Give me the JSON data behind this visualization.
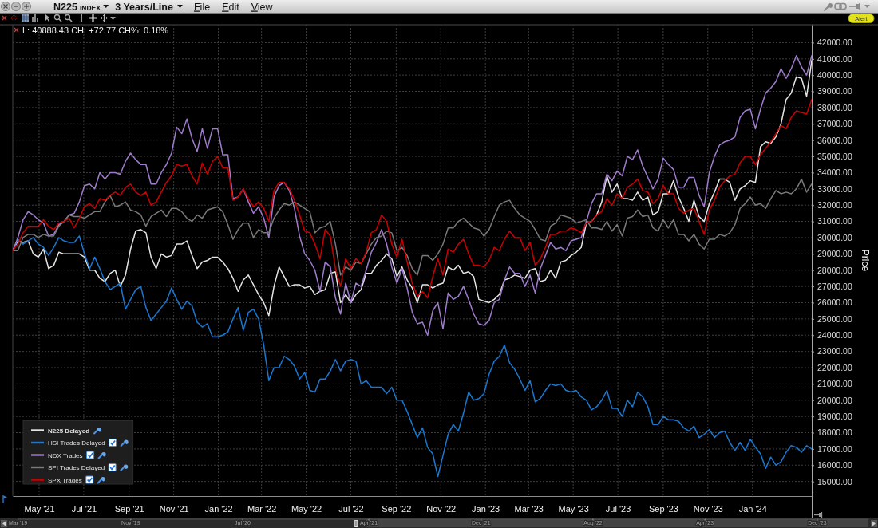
{
  "chart_data": {
    "type": "line",
    "title": "N225 INDEX",
    "subtitle": "3 Years/Line",
    "ylabel": "Price",
    "annotations": [
      "File",
      "Edit",
      "View",
      "Alert",
      "L: 40888.43 CH: +72.77 CH%: 0.18%"
    ],
    "x": [
      "2021-03-26",
      "2021-04-02",
      "2021-04-09",
      "2021-04-16",
      "2021-04-23",
      "2021-04-30",
      "2021-05-07",
      "2021-05-14",
      "2021-05-21",
      "2021-05-28",
      "2021-06-04",
      "2021-06-11",
      "2021-06-18",
      "2021-06-25",
      "2021-07-02",
      "2021-07-09",
      "2021-07-16",
      "2021-07-23",
      "2021-07-30",
      "2021-08-06",
      "2021-08-13",
      "2021-08-20",
      "2021-08-27",
      "2021-09-03",
      "2021-09-10",
      "2021-09-17",
      "2021-09-24",
      "2021-10-01",
      "2021-10-08",
      "2021-10-15",
      "2021-10-22",
      "2021-10-29",
      "2021-11-05",
      "2021-11-12",
      "2021-11-19",
      "2021-11-26",
      "2021-12-03",
      "2021-12-10",
      "2021-12-17",
      "2021-12-24",
      "2021-12-31",
      "2022-01-07",
      "2022-01-14",
      "2022-01-21",
      "2022-01-28",
      "2022-02-04",
      "2022-02-11",
      "2022-02-18",
      "2022-02-25",
      "2022-03-04",
      "2022-03-11",
      "2022-03-18",
      "2022-03-25",
      "2022-04-01",
      "2022-04-08",
      "2022-04-15",
      "2022-04-22",
      "2022-04-29",
      "2022-05-06",
      "2022-05-13",
      "2022-05-20",
      "2022-05-27",
      "2022-06-03",
      "2022-06-10",
      "2022-06-17",
      "2022-06-24",
      "2022-07-01",
      "2022-07-08",
      "2022-07-15",
      "2022-07-22",
      "2022-07-29",
      "2022-08-05",
      "2022-08-12",
      "2022-08-19",
      "2022-08-26",
      "2022-09-02",
      "2022-09-09",
      "2022-09-16",
      "2022-09-23",
      "2022-09-30",
      "2022-10-07",
      "2022-10-14",
      "2022-10-21",
      "2022-10-28",
      "2022-11-04",
      "2022-11-11",
      "2022-11-18",
      "2022-11-25",
      "2022-12-02",
      "2022-12-09",
      "2022-12-16",
      "2022-12-23",
      "2022-12-30",
      "2023-01-06",
      "2023-01-13",
      "2023-01-20",
      "2023-01-27",
      "2023-02-03",
      "2023-02-10",
      "2023-02-17",
      "2023-02-24",
      "2023-03-03",
      "2023-03-10",
      "2023-03-17",
      "2023-03-24",
      "2023-03-31",
      "2023-04-07",
      "2023-04-14",
      "2023-04-21",
      "2023-04-28",
      "2023-05-05",
      "2023-05-12",
      "2023-05-19",
      "2023-05-26",
      "2023-06-02",
      "2023-06-09",
      "2023-06-16",
      "2023-06-23",
      "2023-06-30",
      "2023-07-07",
      "2023-07-14",
      "2023-07-21",
      "2023-07-28",
      "2023-08-04",
      "2023-08-11",
      "2023-08-18",
      "2023-08-25",
      "2023-09-01",
      "2023-09-08",
      "2023-09-15",
      "2023-09-22",
      "2023-09-29",
      "2023-10-06",
      "2023-10-13",
      "2023-10-20",
      "2023-10-27",
      "2023-11-03",
      "2023-11-10",
      "2023-11-17",
      "2023-11-24",
      "2023-12-01",
      "2023-12-08",
      "2023-12-15",
      "2023-12-22",
      "2023-12-29",
      "2024-01-05",
      "2024-01-12",
      "2024-01-19",
      "2024-01-26",
      "2024-02-02",
      "2024-02-09",
      "2024-02-16",
      "2024-02-23",
      "2024-03-01",
      "2024-03-08",
      "2024-03-15",
      "2024-03-22"
    ],
    "xlim": [
      "2021-03-26",
      "2024-03-22"
    ],
    "xticks": [
      {
        "value": "2021-05-01",
        "label": "May '21"
      },
      {
        "value": "2021-07-01",
        "label": "Jul '21"
      },
      {
        "value": "2021-09-01",
        "label": "Sep '21"
      },
      {
        "value": "2021-11-01",
        "label": "Nov '21"
      },
      {
        "value": "2022-01-01",
        "label": "Jan '22"
      },
      {
        "value": "2022-03-01",
        "label": "Mar '22"
      },
      {
        "value": "2022-05-01",
        "label": "May '22"
      },
      {
        "value": "2022-07-01",
        "label": "Jul '22"
      },
      {
        "value": "2022-09-01",
        "label": "Sep '22"
      },
      {
        "value": "2022-11-01",
        "label": "Nov '22"
      },
      {
        "value": "2023-01-01",
        "label": "Jan '23"
      },
      {
        "value": "2023-03-01",
        "label": "Mar '23"
      },
      {
        "value": "2023-05-01",
        "label": "May '23"
      },
      {
        "value": "2023-07-01",
        "label": "Jul '23"
      },
      {
        "value": "2023-09-01",
        "label": "Sep '23"
      },
      {
        "value": "2023-11-01",
        "label": "Nov '23"
      },
      {
        "value": "2024-01-01",
        "label": "Jan '24"
      }
    ],
    "x2lim": [
      "2019-03-01",
      "2024-03-22"
    ],
    "x2ticks": [
      {
        "value": "2019-03-01",
        "label": "Mar '19"
      },
      {
        "value": "2019-11-01",
        "label": "Nov '19"
      },
      {
        "value": "2020-07-01",
        "label": "Jul '20"
      },
      {
        "value": "2021-04-01",
        "label": "Apr '21"
      },
      {
        "value": "2021-12-01",
        "label": "Dec '21"
      },
      {
        "value": "2022-08-01",
        "label": "Aug '22"
      },
      {
        "value": "2023-04-01",
        "label": "Apr '23"
      },
      {
        "value": "2023-12-01",
        "label": "Dec '23"
      }
    ],
    "ylim": [
      14100,
      43100
    ],
    "yticks": [
      {
        "value": 15000,
        "label": "15000.00"
      },
      {
        "value": 16000,
        "label": "16000.00"
      },
      {
        "value": 17000,
        "label": "17000.00"
      },
      {
        "value": 18000,
        "label": "18000.00"
      },
      {
        "value": 19000,
        "label": "19000.00"
      },
      {
        "value": 20000,
        "label": "20000.00"
      },
      {
        "value": 21000,
        "label": "21000.00"
      },
      {
        "value": 22000,
        "label": "22000.00"
      },
      {
        "value": 23000,
        "label": "23000.00"
      },
      {
        "value": 24000,
        "label": "24000.00"
      },
      {
        "value": 25000,
        "label": "25000.00"
      },
      {
        "value": 26000,
        "label": "26000.00"
      },
      {
        "value": 27000,
        "label": "27000.00"
      },
      {
        "value": 28000,
        "label": "28000.00"
      },
      {
        "value": 29000,
        "label": "29000.00"
      },
      {
        "value": 30000,
        "label": "30000.00"
      },
      {
        "value": 31000,
        "label": "31000.00"
      },
      {
        "value": 32000,
        "label": "32000.00"
      },
      {
        "value": 33000,
        "label": "33000.00"
      },
      {
        "value": 34000,
        "label": "34000.00"
      },
      {
        "value": 35000,
        "label": "35000.00"
      },
      {
        "value": 36000,
        "label": "36000.00"
      },
      {
        "value": 37000,
        "label": "37000.00"
      },
      {
        "value": 38000,
        "label": "38000.00"
      },
      {
        "value": 39000,
        "label": "39000.00"
      },
      {
        "value": 40000,
        "label": "40000.00"
      },
      {
        "value": 41000,
        "label": "41000.00"
      },
      {
        "value": 42000,
        "label": "42000.00"
      }
    ],
    "grid": true,
    "legend": "bottom left",
    "series": [
      {
        "name": "N225 Delayed",
        "color": "#e4e4e4",
        "values": [
          29200,
          29800,
          29700,
          29800,
          29000,
          28800,
          29300,
          28100,
          28300,
          29100,
          29000,
          29000,
          29000,
          29000,
          28800,
          28000,
          28000,
          27500,
          27300,
          27800,
          28000,
          27000,
          27700,
          29300,
          30400,
          30500,
          30300,
          28800,
          28100,
          29000,
          28800,
          28900,
          29600,
          29600,
          29800,
          28900,
          28100,
          28500,
          28600,
          28800,
          28800,
          28500,
          28100,
          27500,
          26700,
          27400,
          27700,
          27100,
          26500,
          26000,
          25200,
          27000,
          28200,
          27600,
          27000,
          27100,
          27100,
          26900,
          27000,
          26500,
          26700,
          26800,
          27800,
          27900,
          26000,
          26500,
          26000,
          26500,
          26800,
          27800,
          27800,
          28300,
          28600,
          29000,
          28700,
          27600,
          28200,
          27400,
          26900,
          26000,
          27100,
          27100,
          26900,
          27100,
          27200,
          28200,
          28000,
          28300,
          27800,
          27900,
          27600,
          26200,
          26100,
          26000,
          26200,
          26500,
          27400,
          27500,
          27700,
          27600,
          27500,
          28000,
          28100,
          27300,
          27400,
          28000,
          27500,
          28500,
          28600,
          28900,
          29100,
          29400,
          30900,
          31000,
          31400,
          32200,
          33800,
          32800,
          33300,
          32400,
          32400,
          32300,
          32800,
          32300,
          32500,
          31400,
          31600,
          32700,
          32700,
          33500,
          32500,
          31800,
          31000,
          32300,
          31300,
          31000,
          32100,
          32800,
          33600,
          33600,
          33400,
          32300,
          33000,
          33200,
          33500,
          33400,
          35600,
          35900,
          35800,
          36200,
          37000,
          38500,
          38900,
          39900,
          39800,
          38700,
          40900
        ]
      },
      {
        "name": "HSI Trades Delayed",
        "color": "#1b78d0",
        "values": [
          29200,
          29900,
          29600,
          29800,
          30000,
          29600,
          29400,
          28900,
          29400,
          30000,
          29800,
          29700,
          29700,
          30100,
          29000,
          28100,
          28800,
          28100,
          27300,
          26800,
          27000,
          27200,
          25600,
          26200,
          26800,
          27000,
          25700,
          24900,
          25300,
          25700,
          26100,
          26900,
          26200,
          25600,
          26100,
          25800,
          24800,
          24500,
          24700,
          23900,
          23900,
          24000,
          24200,
          25000,
          25700,
          24300,
          25400,
          25600,
          25000,
          23400,
          21200,
          22000,
          22000,
          22700,
          22500,
          22100,
          21300,
          21700,
          20600,
          20500,
          21300,
          21300,
          21800,
          22500,
          21800,
          22400,
          22500,
          22400,
          21000,
          21200,
          20800,
          20800,
          20800,
          20400,
          20800,
          20000,
          20000,
          19300,
          18500,
          17700,
          18300,
          17100,
          16700,
          15300,
          16600,
          17900,
          18500,
          18100,
          19200,
          20500,
          20000,
          20100,
          20400,
          21600,
          22400,
          22700,
          23400,
          22300,
          21900,
          21300,
          20600,
          21200,
          19900,
          20100,
          20600,
          21000,
          20900,
          21000,
          20600,
          20500,
          20600,
          20200,
          20000,
          19400,
          19600,
          20000,
          20600,
          19500,
          19500,
          19000,
          20000,
          19600,
          20500,
          20200,
          19600,
          18500,
          18500,
          19000,
          18800,
          18800,
          18700,
          18300,
          18100,
          18400,
          17700,
          17900,
          18200,
          17700,
          18000,
          18100,
          17400,
          16900,
          17400,
          16900,
          17600,
          17100,
          16700,
          15800,
          16500,
          16000,
          16200,
          16800,
          17200,
          17100,
          16800,
          17200,
          17000
        ]
      },
      {
        "name": "NDX Trades",
        "color": "#a07ccc",
        "values": [
          29200,
          30000,
          31100,
          31600,
          31400,
          31100,
          30900,
          30100,
          30200,
          30800,
          31000,
          31400,
          31500,
          32200,
          33200,
          33300,
          33000,
          34000,
          33600,
          34000,
          34000,
          33900,
          34700,
          35200,
          34800,
          34500,
          34500,
          33300,
          33300,
          34000,
          34500,
          35200,
          36800,
          36400,
          37300,
          36100,
          35300,
          36700,
          35500,
          36700,
          36700,
          35100,
          35100,
          32400,
          32500,
          33000,
          32200,
          31500,
          31900,
          31200,
          30000,
          32500,
          33200,
          33400,
          32900,
          31800,
          30100,
          29000,
          28600,
          28000,
          26700,
          28500,
          28200,
          26300,
          25300,
          27200,
          26000,
          27200,
          27000,
          28000,
          29100,
          29700,
          30500,
          29600,
          28200,
          27200,
          28100,
          26900,
          25400,
          24700,
          24800,
          24000,
          25500,
          26000,
          24400,
          26600,
          26200,
          26400,
          27000,
          26200,
          25300,
          24700,
          24600,
          24900,
          26000,
          26200,
          27400,
          28200,
          27800,
          27800,
          27000,
          27700,
          26600,
          28100,
          28900,
          29700,
          29300,
          29400,
          29200,
          29800,
          29900,
          30000,
          31000,
          32100,
          32700,
          32700,
          33900,
          33500,
          34100,
          33800,
          35000,
          34800,
          35400,
          34400,
          33700,
          33000,
          33600,
          34900,
          34500,
          34200,
          33100,
          33100,
          33700,
          33700,
          32600,
          31900,
          34000,
          35000,
          35700,
          35900,
          36000,
          36200,
          37400,
          37800,
          37900,
          36700,
          37900,
          38900,
          39200,
          39600,
          40400,
          39800,
          40400,
          41200,
          40500,
          40000,
          41200
        ]
      },
      {
        "name": "SPI Trades Delayed",
        "color": "#7a7a7a",
        "values": [
          29200,
          29200,
          30000,
          30200,
          30200,
          30000,
          30200,
          30100,
          30100,
          30700,
          31000,
          31400,
          31300,
          31300,
          31200,
          31400,
          31600,
          31600,
          32200,
          32600,
          31900,
          32000,
          32200,
          31700,
          31600,
          31400,
          30700,
          31300,
          31500,
          31700,
          31300,
          31800,
          31800,
          31600,
          31200,
          31000,
          31400,
          31200,
          31700,
          31800,
          31900,
          31600,
          30800,
          29900,
          30500,
          30900,
          30900,
          30000,
          30500,
          30300,
          30300,
          31200,
          31700,
          32100,
          32000,
          32200,
          32000,
          31800,
          31600,
          30300,
          30600,
          30700,
          31000,
          29600,
          27700,
          28200,
          28000,
          28500,
          28400,
          29000,
          29600,
          30000,
          30100,
          30400,
          30300,
          29200,
          29400,
          28900,
          28100,
          27700,
          28900,
          28900,
          28600,
          29000,
          29600,
          30600,
          30600,
          31000,
          31200,
          30900,
          30600,
          30500,
          30100,
          30500,
          31300,
          32000,
          32200,
          32300,
          31800,
          31400,
          31200,
          31000,
          30500,
          29900,
          29800,
          30700,
          30900,
          31400,
          31300,
          31200,
          30900,
          31000,
          31100,
          30600,
          30600,
          30500,
          31000,
          30400,
          30800,
          30100,
          31200,
          31300,
          31700,
          31300,
          31400,
          30600,
          30400,
          31100,
          30600,
          31100,
          30200,
          30200,
          29800,
          30200,
          29600,
          29300,
          29900,
          29900,
          30200,
          30100,
          30300,
          30800,
          31800,
          32100,
          32500,
          32000,
          32100,
          31800,
          32400,
          32900,
          32700,
          32800,
          32700,
          33000,
          33600,
          32800,
          33300
        ]
      },
      {
        "name": "SPX Trades",
        "color": "#cc0000",
        "values": [
          29200,
          29600,
          30300,
          30700,
          30700,
          30700,
          31100,
          30700,
          30500,
          30900,
          31000,
          31200,
          30600,
          31200,
          31900,
          32100,
          31800,
          32400,
          32300,
          32600,
          32800,
          32600,
          33100,
          33300,
          32800,
          32600,
          32800,
          32000,
          32200,
          32800,
          33400,
          33800,
          34500,
          34400,
          34500,
          33800,
          33300,
          34600,
          33900,
          34700,
          35000,
          34300,
          34300,
          32300,
          32500,
          33000,
          32400,
          31900,
          32200,
          31800,
          31000,
          32900,
          33400,
          33400,
          33000,
          32300,
          31400,
          30400,
          30300,
          29600,
          28700,
          30500,
          30100,
          28100,
          27000,
          28700,
          28100,
          28700,
          28400,
          29100,
          30300,
          30500,
          31400,
          31000,
          29600,
          28800,
          29900,
          28500,
          27200,
          26400,
          26700,
          26300,
          27600,
          28700,
          27700,
          29300,
          29100,
          29600,
          29900,
          29000,
          28300,
          28300,
          28200,
          28600,
          29400,
          29200,
          29900,
          30400,
          30000,
          30000,
          29200,
          29700,
          28300,
          28700,
          29400,
          30200,
          30200,
          30400,
          30400,
          30600,
          30500,
          30300,
          30900,
          31000,
          31400,
          31600,
          32400,
          32000,
          32700,
          32400,
          33100,
          33300,
          33600,
          32900,
          32800,
          32100,
          32400,
          33200,
          32700,
          32700,
          31800,
          31500,
          31700,
          31800,
          31000,
          30200,
          31700,
          32300,
          33100,
          33500,
          33800,
          33900,
          34600,
          35000,
          35000,
          34500,
          35100,
          35500,
          35900,
          36400,
          36900,
          36700,
          37400,
          37800,
          37700,
          37600,
          38500
        ]
      }
    ]
  }
}
